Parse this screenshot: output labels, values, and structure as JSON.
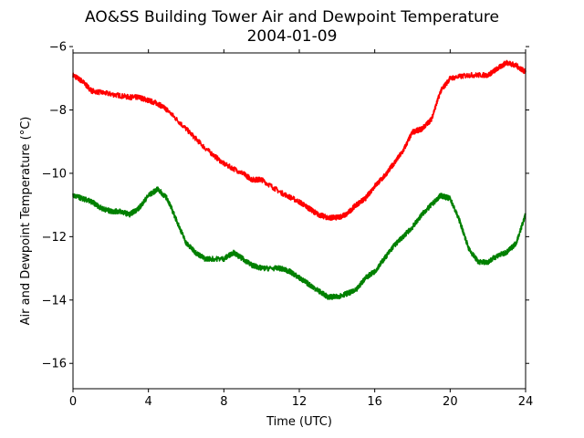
{
  "chart_data": {
    "type": "line",
    "title": "AO&SS Building Tower Air and Dewpoint Temperature",
    "subtitle": "2004-01-09",
    "xlabel": "Time (UTC)",
    "ylabel": "Air and Dewpoint Temperature (°C)",
    "xlim": [
      0,
      24
    ],
    "ylim": [
      -16.8,
      -6.2
    ],
    "xticks": [
      "0",
      "4",
      "8",
      "12",
      "16",
      "20",
      "24"
    ],
    "yticks": [
      "−6",
      "−8",
      "−10",
      "−12",
      "−14",
      "−16"
    ],
    "grid": false,
    "series": [
      {
        "color": "#ff0000",
        "x": [
          0,
          0.5,
          1,
          2,
          3,
          3.5,
          4,
          4.5,
          5,
          6,
          7,
          8,
          9,
          9.5,
          10,
          11,
          12,
          12.5,
          13,
          13.5,
          14,
          14.5,
          15,
          15.5,
          16,
          16.5,
          17,
          17.5,
          18,
          18.5,
          19,
          19.5,
          20,
          21,
          22,
          22.5,
          23,
          23.5,
          24
        ],
        "y": [
          -6.9,
          -7.1,
          -7.4,
          -7.5,
          -7.6,
          -7.6,
          -7.7,
          -7.8,
          -8.0,
          -8.6,
          -9.2,
          -9.7,
          -10.0,
          -10.2,
          -10.2,
          -10.6,
          -10.9,
          -11.1,
          -11.3,
          -11.4,
          -11.4,
          -11.3,
          -11.0,
          -10.8,
          -10.4,
          -10.1,
          -9.7,
          -9.3,
          -8.7,
          -8.6,
          -8.3,
          -7.4,
          -7.0,
          -6.9,
          -6.9,
          -6.7,
          -6.5,
          -6.6,
          -6.8
        ]
      },
      {
        "color": "#008000",
        "x": [
          0,
          0.5,
          1,
          1.5,
          2,
          2.5,
          3,
          3.5,
          4,
          4.5,
          5,
          5.5,
          6,
          6.5,
          7,
          8,
          8.5,
          9,
          9.5,
          10,
          11,
          11.5,
          12,
          12.5,
          13,
          13.5,
          14,
          14.5,
          15,
          15.5,
          16,
          16.5,
          17,
          17.5,
          18,
          18.5,
          19,
          19.5,
          20,
          20.5,
          21,
          21.5,
          22,
          22.5,
          23,
          23.5,
          24
        ],
        "y": [
          -10.7,
          -10.8,
          -10.9,
          -11.1,
          -11.2,
          -11.2,
          -11.3,
          -11.1,
          -10.7,
          -10.5,
          -10.8,
          -11.5,
          -12.2,
          -12.5,
          -12.7,
          -12.7,
          -12.5,
          -12.7,
          -12.9,
          -13.0,
          -13.0,
          -13.1,
          -13.3,
          -13.5,
          -13.7,
          -13.9,
          -13.9,
          -13.8,
          -13.7,
          -13.3,
          -13.1,
          -12.7,
          -12.3,
          -12.0,
          -11.7,
          -11.3,
          -11.0,
          -10.7,
          -10.8,
          -11.5,
          -12.4,
          -12.8,
          -12.8,
          -12.6,
          -12.5,
          -12.2,
          -11.3
        ]
      }
    ]
  }
}
